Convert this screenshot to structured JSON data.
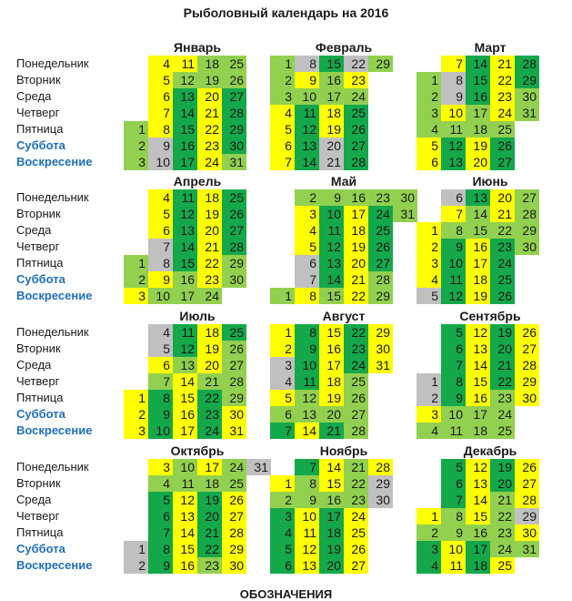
{
  "title": "Рыболовный календарь на 2016",
  "weekdays": [
    "Понедельник",
    "Вторник",
    "Среда",
    "Четверг",
    "Пятница",
    "Суббота",
    "Воскресение"
  ],
  "legend_title": "ОБОЗНАЧЕНИЯ",
  "colors": {
    "Y": "#ffff00",
    "D": "#14a84a",
    "L": "#92d050",
    "G": "#c0c0c0"
  },
  "months": [
    {
      "name": "Январь",
      "days": 31,
      "start_weekday": 4,
      "codes": "LLLYYYYYGGYLDDDDDLLYYYYYLLDDDDL"
    },
    {
      "name": "Февраль",
      "days": 29,
      "start_weekday": 0,
      "codes": "LLLYYYYGYLDDDDDLLYYGGGYLDDDDL"
    },
    {
      "name": "Март",
      "days": 31,
      "start_weekday": 1,
      "codes": "LLLLYYYGGYLDDDDDLLYYYYYYLDDDDLL"
    },
    {
      "name": "Апрель",
      "days": 30,
      "start_weekday": 4,
      "codes": "LLYYYYGGYLDDDDDLLYYYYYYLDDDDLL"
    },
    {
      "name": "Май",
      "days": 31,
      "start_weekday": 6,
      "codes": "LLYYYGGYLDDDDDLLYYYYYYLDDDDLLLL"
    },
    {
      "name": "Июнь",
      "days": 30,
      "start_weekday": 2,
      "codes": "YYYYGGYLDDDDDLLYYYYYYLDDDDLLLL"
    },
    {
      "name": "Июль",
      "days": 31,
      "start_weekday": 4,
      "codes": "YYYGGYLDDDDDLYYYYYYYLDDDDLLLLYY"
    },
    {
      "name": "Август",
      "days": 31,
      "start_weekday": 0,
      "codes": "YYGGYLDDDDDLLYYYYYYLDDDDLLLLYYY"
    },
    {
      "name": "Сентябрь",
      "days": 30,
      "start_weekday": 3,
      "codes": "GGYLDDDDDLLYYYYYLLDDDDLLLYYYYY"
    },
    {
      "name": "Октябрь",
      "days": 31,
      "start_weekday": 5,
      "codes": "GGYLDDDDDLLYYYYYYLDDDDLLLYYYYYG"
    },
    {
      "name": "Ноябрь",
      "days": 30,
      "start_weekday": 1,
      "codes": "YLDDDDDLLYYYYYYLDDDDLLLYYYYYGG"
    },
    {
      "name": "Декабрь",
      "days": 31,
      "start_weekday": 3,
      "codes": "YLDDDDDLLYYYYYYLDDDDLLLLYYYYGYL"
    }
  ]
}
